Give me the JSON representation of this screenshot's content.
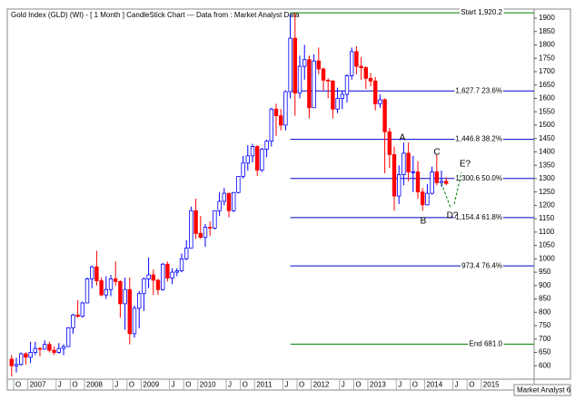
{
  "chart_data": {
    "type": "candlestick",
    "title": "Gold Index (GLD) (WI) -  [ 1 Month ] CandleStick Chart --- Data from : Market Analyst Data",
    "credit": "Market Analyst 6",
    "x": [
      "2006-09",
      "2006-10",
      "2006-11",
      "2006-12",
      "2007-01",
      "2007-02",
      "2007-03",
      "2007-04",
      "2007-05",
      "2007-06",
      "2007-07",
      "2007-08",
      "2007-09",
      "2007-10",
      "2007-11",
      "2007-12",
      "2008-01",
      "2008-02",
      "2008-03",
      "2008-04",
      "2008-05",
      "2008-06",
      "2008-07",
      "2008-08",
      "2008-09",
      "2008-10",
      "2008-11",
      "2008-12",
      "2009-01",
      "2009-02",
      "2009-03",
      "2009-04",
      "2009-05",
      "2009-06",
      "2009-07",
      "2009-08",
      "2009-09",
      "2009-10",
      "2009-11",
      "2009-12",
      "2010-01",
      "2010-02",
      "2010-03",
      "2010-04",
      "2010-05",
      "2010-06",
      "2010-07",
      "2010-08",
      "2010-09",
      "2010-10",
      "2010-11",
      "2010-12",
      "2011-01",
      "2011-02",
      "2011-03",
      "2011-04",
      "2011-05",
      "2011-06",
      "2011-07",
      "2011-08",
      "2011-09",
      "2011-10",
      "2011-11",
      "2011-12",
      "2012-01",
      "2012-02",
      "2012-03",
      "2012-04",
      "2012-05",
      "2012-06",
      "2012-07",
      "2012-08",
      "2012-09",
      "2012-10",
      "2012-11",
      "2012-12",
      "2013-01",
      "2013-02",
      "2013-03",
      "2013-04",
      "2013-05",
      "2013-06",
      "2013-07",
      "2013-08",
      "2013-09",
      "2013-10",
      "2013-11",
      "2013-12",
      "2014-01",
      "2014-02",
      "2014-03",
      "2014-04",
      "2014-05"
    ],
    "open": [
      625,
      600,
      605,
      645,
      632,
      650,
      665,
      662,
      680,
      658,
      650,
      665,
      672,
      742,
      790,
      785,
      835,
      925,
      970,
      918,
      865,
      885,
      925,
      915,
      832,
      885,
      720,
      815,
      870,
      925,
      940,
      920,
      885,
      980,
      928,
      950,
      955,
      1000,
      1040,
      1180,
      1095,
      1080,
      1118,
      1115,
      1180,
      1215,
      1245,
      1180,
      1248,
      1308,
      1358,
      1385,
      1420,
      1332,
      1410,
      1440,
      1560,
      1535,
      1500,
      1625,
      1825,
      1620,
      1720,
      1745,
      1565,
      1740,
      1710,
      1668,
      1665,
      1560,
      1600,
      1615,
      1685,
      1775,
      1720,
      1715,
      1675,
      1665,
      1580,
      1595,
      1475,
      1390,
      1235,
      1315,
      1395,
      1325,
      1325,
      1250,
      1202,
      1245,
      1325,
      1285,
      1290
    ],
    "high": [
      640,
      630,
      650,
      650,
      690,
      690,
      670,
      695,
      690,
      672,
      685,
      680,
      745,
      795,
      845,
      840,
      930,
      975,
      1030,
      930,
      935,
      940,
      990,
      920,
      930,
      930,
      825,
      880,
      930,
      1005,
      960,
      925,
      985,
      990,
      965,
      965,
      1020,
      1070,
      1195,
      1225,
      1160,
      1130,
      1140,
      1180,
      1250,
      1265,
      1245,
      1250,
      1310,
      1385,
      1425,
      1430,
      1425,
      1415,
      1445,
      1565,
      1580,
      1560,
      1630,
      1915,
      1920,
      1760,
      1800,
      1760,
      1765,
      1790,
      1715,
      1675,
      1668,
      1640,
      1630,
      1690,
      1790,
      1795,
      1755,
      1720,
      1695,
      1680,
      1615,
      1600,
      1490,
      1420,
      1350,
      1435,
      1435,
      1385,
      1365,
      1265,
      1280,
      1345,
      1390,
      1330,
      1305
    ],
    "low": [
      560,
      575,
      600,
      605,
      610,
      640,
      635,
      660,
      650,
      640,
      645,
      640,
      670,
      720,
      780,
      780,
      835,
      890,
      900,
      860,
      850,
      860,
      900,
      780,
      735,
      680,
      705,
      740,
      805,
      890,
      865,
      865,
      880,
      915,
      905,
      935,
      950,
      995,
      1040,
      1075,
      1075,
      1045,
      1085,
      1110,
      1160,
      1200,
      1155,
      1175,
      1245,
      1300,
      1330,
      1360,
      1310,
      1325,
      1380,
      1420,
      1460,
      1480,
      1480,
      1600,
      1535,
      1600,
      1670,
      1525,
      1565,
      1690,
      1630,
      1600,
      1525,
      1545,
      1560,
      1585,
      1670,
      1690,
      1670,
      1635,
      1645,
      1555,
      1565,
      1320,
      1340,
      1180,
      1205,
      1275,
      1290,
      1250,
      1225,
      1180,
      1200,
      1240,
      1275,
      1270,
      1275
    ],
    "close": [
      600,
      605,
      645,
      632,
      650,
      665,
      662,
      680,
      658,
      650,
      665,
      672,
      742,
      790,
      785,
      835,
      925,
      970,
      918,
      865,
      885,
      925,
      915,
      832,
      885,
      720,
      815,
      870,
      925,
      940,
      920,
      885,
      980,
      928,
      950,
      955,
      1000,
      1040,
      1180,
      1095,
      1080,
      1118,
      1115,
      1180,
      1215,
      1245,
      1180,
      1248,
      1308,
      1358,
      1385,
      1420,
      1332,
      1410,
      1440,
      1560,
      1535,
      1500,
      1625,
      1825,
      1620,
      1720,
      1745,
      1565,
      1740,
      1710,
      1668,
      1665,
      1560,
      1600,
      1615,
      1685,
      1775,
      1720,
      1715,
      1675,
      1665,
      1580,
      1595,
      1475,
      1390,
      1235,
      1315,
      1395,
      1325,
      1325,
      1250,
      1202,
      1245,
      1325,
      1285,
      1290,
      1282
    ],
    "up_color": "#0000ff",
    "down_color": "#ff0000",
    "ylim": [
      550,
      1934
    ],
    "yticks": [
      600,
      650,
      700,
      750,
      800,
      850,
      900,
      950,
      1000,
      1050,
      1100,
      1150,
      1200,
      1250,
      1300,
      1350,
      1400,
      1450,
      1500,
      1550,
      1600,
      1650,
      1700,
      1750,
      1800,
      1850,
      1900
    ],
    "xticks": [
      {
        "value": "2006-10",
        "label": "O"
      },
      {
        "value": "2007-01",
        "label": "2007"
      },
      {
        "value": "2007-07",
        "label": "J"
      },
      {
        "value": "2007-10",
        "label": "O"
      },
      {
        "value": "2008-01",
        "label": "2008"
      },
      {
        "value": "2008-07",
        "label": "J"
      },
      {
        "value": "2008-10",
        "label": "O"
      },
      {
        "value": "2009-01",
        "label": "2009"
      },
      {
        "value": "2009-07",
        "label": "J"
      },
      {
        "value": "2009-10",
        "label": "O"
      },
      {
        "value": "2010-01",
        "label": "2010"
      },
      {
        "value": "2010-07",
        "label": "J"
      },
      {
        "value": "2010-10",
        "label": "O"
      },
      {
        "value": "2011-01",
        "label": "2011"
      },
      {
        "value": "2011-07",
        "label": "J"
      },
      {
        "value": "2011-10",
        "label": "O"
      },
      {
        "value": "2012-01",
        "label": "2012"
      },
      {
        "value": "2012-07",
        "label": "J"
      },
      {
        "value": "2012-10",
        "label": "O"
      },
      {
        "value": "2013-01",
        "label": "2013"
      },
      {
        "value": "2013-07",
        "label": "J"
      },
      {
        "value": "2013-10",
        "label": "O"
      },
      {
        "value": "2014-01",
        "label": "2014"
      },
      {
        "value": "2014-07",
        "label": "J"
      },
      {
        "value": "2014-10",
        "label": "O"
      },
      {
        "value": "2015-01",
        "label": "2015"
      }
    ],
    "levels": [
      {
        "value": 1920.2,
        "label": "Start 1,920.2",
        "color": "#008000"
      },
      {
        "value": 1627.7,
        "label": "1,627.7 23.6%",
        "color": "#0000cc"
      },
      {
        "value": 1446.8,
        "label": "1,446.8 38.2%",
        "color": "#0000cc"
      },
      {
        "value": 1300.6,
        "label": "1,300.6 50.0%",
        "color": "#0000cc"
      },
      {
        "value": 1154.4,
        "label": "1,154.4 61.8%",
        "color": "#0000cc"
      },
      {
        "value": 973.4,
        "label": "973.4 76.4%",
        "color": "#0000cc"
      },
      {
        "value": 681.0,
        "label": "End 681.0",
        "color": "#008000"
      }
    ],
    "levels_start": "2011-08",
    "annotations": [
      "A",
      "B",
      "C",
      "D?",
      "E?"
    ]
  }
}
